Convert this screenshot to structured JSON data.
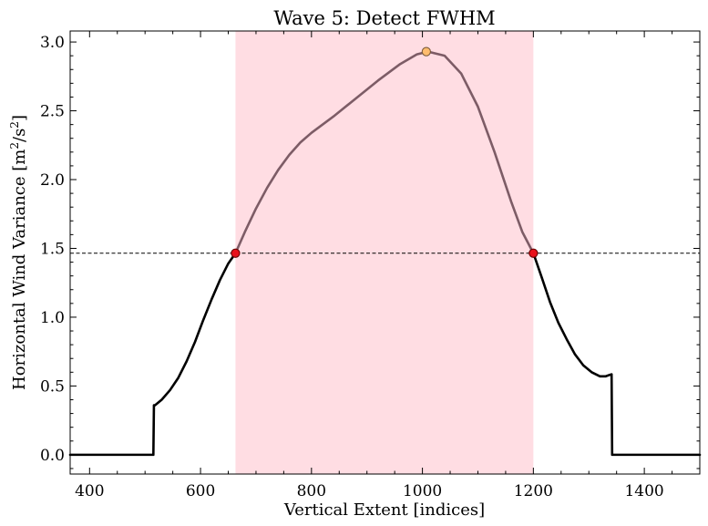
{
  "chart_data": {
    "type": "line",
    "title": "Wave 5: Detect FWHM",
    "xlabel": "Vertical Extent [indices]",
    "ylabel_main": "Horizontal Wind Variance [m",
    "ylabel_sup1": "2",
    "ylabel_mid": "/s",
    "ylabel_sup2": "2",
    "ylabel_end": "]",
    "xlim": [
      365,
      1500
    ],
    "ylim": [
      -0.14,
      3.08
    ],
    "x_ticks": [
      400,
      600,
      800,
      1000,
      1200,
      1400
    ],
    "x_tick_labels": [
      "400",
      "600",
      "800",
      "1000",
      "1200",
      "1400"
    ],
    "y_ticks": [
      0.0,
      0.5,
      1.0,
      1.5,
      2.0,
      2.5,
      3.0
    ],
    "y_tick_labels": [
      "0.0",
      "0.5",
      "1.0",
      "1.5",
      "2.0",
      "2.5",
      "3.0"
    ],
    "grid": false,
    "fwhm_span": {
      "x_start": 663,
      "x_end": 1200,
      "color": "#ffdde3"
    },
    "half_max": {
      "y": 1.465,
      "style": "dashed",
      "color": "#000000"
    },
    "series": [
      {
        "color": "#000000",
        "x": [
          365,
          400,
          450,
          500,
          515,
          516,
          518,
          530,
          545,
          560,
          575,
          590,
          605,
          620,
          635,
          650,
          663
        ],
        "y": [
          0.0,
          0.0,
          0.0,
          0.0,
          0.0,
          0.36,
          0.36,
          0.4,
          0.47,
          0.56,
          0.68,
          0.82,
          0.98,
          1.13,
          1.27,
          1.39,
          1.465
        ]
      },
      {
        "color": "#7d5c66",
        "x": [
          663,
          680,
          700,
          720,
          740,
          760,
          780,
          800,
          840,
          880,
          920,
          960,
          990,
          1010,
          1040,
          1070,
          1100,
          1130,
          1160,
          1180,
          1200
        ],
        "y": [
          1.465,
          1.62,
          1.79,
          1.94,
          2.07,
          2.18,
          2.27,
          2.34,
          2.46,
          2.59,
          2.72,
          2.84,
          2.91,
          2.93,
          2.9,
          2.77,
          2.53,
          2.2,
          1.84,
          1.62,
          1.465
        ]
      },
      {
        "color": "#000000",
        "x": [
          1200,
          1215,
          1230,
          1245,
          1260,
          1275,
          1290,
          1305,
          1320,
          1330,
          1337,
          1341,
          1342,
          1344,
          1360,
          1400,
          1450,
          1500
        ],
        "y": [
          1.465,
          1.29,
          1.11,
          0.96,
          0.84,
          0.73,
          0.65,
          0.6,
          0.57,
          0.57,
          0.58,
          0.585,
          0.0,
          0.0,
          0.0,
          0.0,
          0.0,
          0.0
        ]
      }
    ],
    "markers": [
      {
        "x": 663,
        "y": 1.465,
        "fill": "#e8111b",
        "stroke": "#6a0000"
      },
      {
        "x": 1200,
        "y": 1.465,
        "fill": "#e8111b",
        "stroke": "#6a0000"
      },
      {
        "x": 1007,
        "y": 2.93,
        "fill": "#ffbc6e",
        "stroke": "#7a5a3a"
      }
    ]
  }
}
